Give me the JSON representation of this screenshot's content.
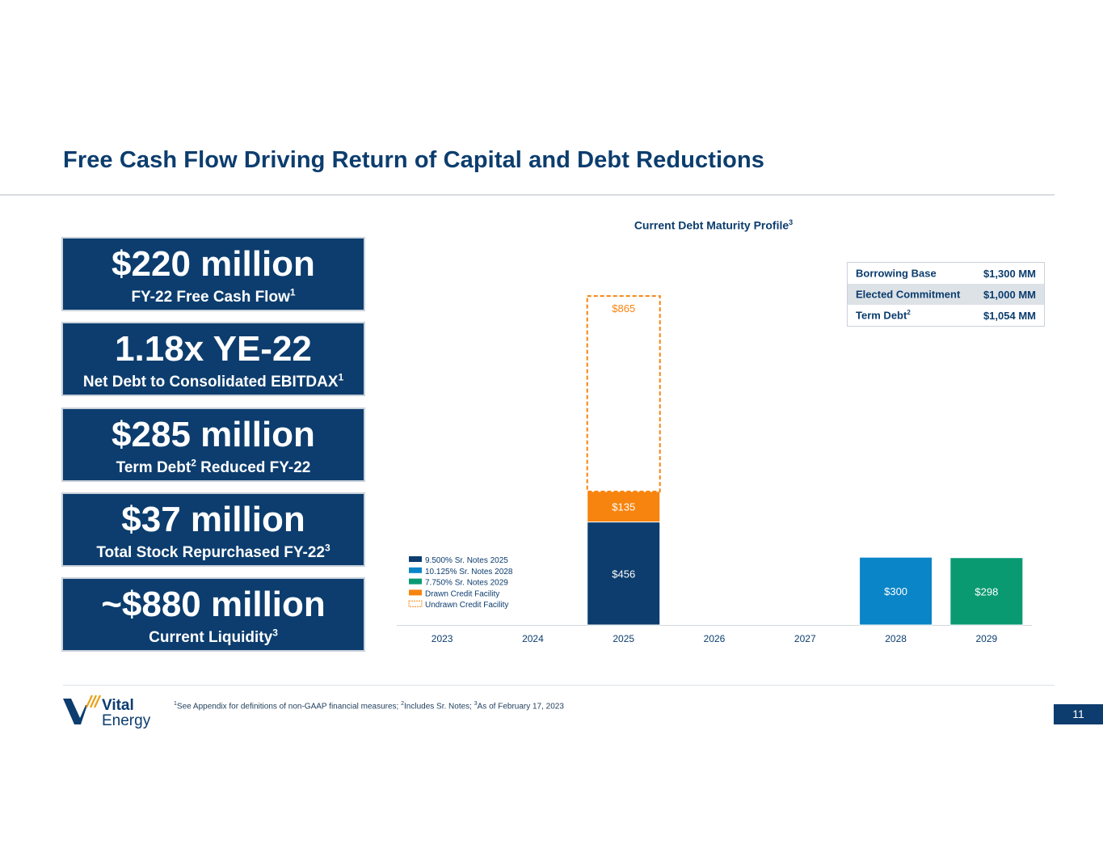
{
  "slide": {
    "title": "Free Cash Flow Driving Return of Capital and Debt Reductions",
    "page_number": "11"
  },
  "stats": [
    {
      "main": "$220 million",
      "sub": "FY-22 Free Cash Flow",
      "sub_sup": "1",
      "sub_tail": ""
    },
    {
      "main": "1.18x YE-22",
      "sub": "Net Debt to Consolidated EBITDAX",
      "sub_sup": "1",
      "sub_tail": ""
    },
    {
      "main": "$285 million",
      "sub": "Term Debt",
      "sub_sup": "2",
      "sub_tail": " Reduced FY-22"
    },
    {
      "main": "$37 million",
      "sub": "Total Stock Repurchased FY-22",
      "sub_sup": "3",
      "sub_tail": ""
    },
    {
      "main": "~$880 million",
      "sub": "Current Liquidity",
      "sub_sup": "3",
      "sub_tail": ""
    }
  ],
  "table": {
    "rows": [
      {
        "label": "Borrowing Base",
        "label_sup": "",
        "value": "$1,300 MM"
      },
      {
        "label": "Elected Commitment",
        "label_sup": "",
        "value": "$1,000 MM"
      },
      {
        "label": "Term Debt",
        "label_sup": "2",
        "value": "$1,054 MM"
      }
    ]
  },
  "chart_data": {
    "type": "bar",
    "stacked": true,
    "title": "Current Debt Maturity Profile",
    "title_sup": "3",
    "categories": [
      "2023",
      "2024",
      "2025",
      "2026",
      "2027",
      "2028",
      "2029"
    ],
    "series": [
      {
        "name": "9.500% Sr. Notes 2025",
        "color": "#0c3d6e",
        "values": [
          0,
          0,
          456,
          0,
          0,
          0,
          0
        ],
        "labels": [
          "",
          "",
          "$456",
          "",
          "",
          "",
          ""
        ]
      },
      {
        "name": "10.125% Sr. Notes 2028",
        "color": "#0a85c7",
        "values": [
          0,
          0,
          0,
          0,
          0,
          300,
          0
        ],
        "labels": [
          "",
          "",
          "",
          "",
          "",
          "$300",
          ""
        ]
      },
      {
        "name": "7.750% Sr. Notes 2029",
        "color": "#0a9a72",
        "values": [
          0,
          0,
          0,
          0,
          0,
          0,
          298
        ],
        "labels": [
          "",
          "",
          "",
          "",
          "",
          "",
          "$298"
        ]
      },
      {
        "name": "Drawn Credit Facility",
        "color": "#f7840f",
        "values": [
          0,
          0,
          135,
          0,
          0,
          0,
          0
        ],
        "labels": [
          "",
          "",
          "$135",
          "",
          "",
          "",
          ""
        ]
      },
      {
        "name": "Undrawn Credit Facility",
        "color": "#f7840f",
        "dashed": true,
        "values": [
          0,
          0,
          865,
          0,
          0,
          0,
          0
        ],
        "labels": [
          "",
          "",
          "$865",
          "",
          "",
          "",
          ""
        ]
      }
    ],
    "ylim": [
      0,
      1460
    ],
    "legend": "bottom-left",
    "grid": false
  },
  "footer": {
    "logo_word1": "Vital",
    "logo_word2": "Energy",
    "note_1_sup": "1",
    "note_1": "See Appendix for definitions of non-GAAP financial measures; ",
    "note_2_sup": "2",
    "note_2": "Includes Sr. Notes; ",
    "note_3_sup": "3",
    "note_3": "As of February 17, 2023"
  },
  "colors": {
    "navy": "#0c3d6e",
    "blue": "#0a85c7",
    "green": "#0a9a72",
    "orange": "#f7840f"
  }
}
